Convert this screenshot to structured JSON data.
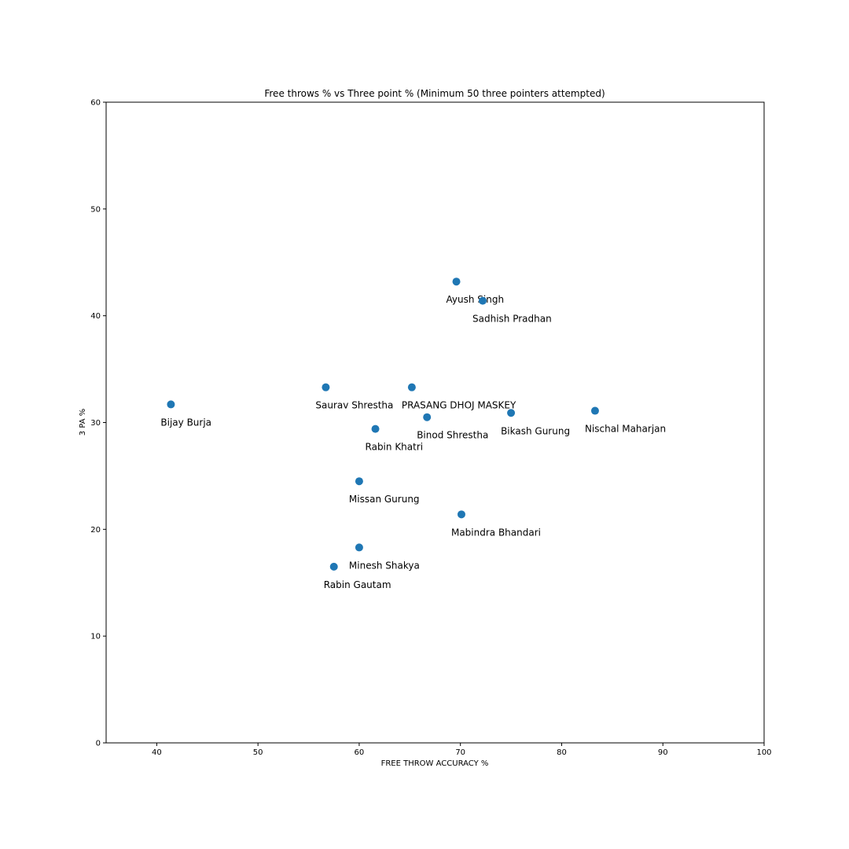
{
  "chart_data": {
    "type": "scatter",
    "title": "Free throws % vs Three point % (Minimum 50 three pointers attempted)",
    "xlabel": "FREE THROW ACCURACY %",
    "ylabel": "3 PA %",
    "xlim": [
      35,
      100
    ],
    "ylim": [
      0,
      60
    ],
    "xticks": [
      40,
      50,
      60,
      70,
      80,
      90,
      100
    ],
    "yticks": [
      0,
      10,
      20,
      30,
      40,
      50,
      60
    ],
    "grid": false,
    "point_color": "#1f77b4",
    "points": [
      {
        "label": "Ayush Singh",
        "x": 69.6,
        "y": 43.2
      },
      {
        "label": "Sadhish Pradhan",
        "x": 72.2,
        "y": 41.4
      },
      {
        "label": "Saurav Shrestha",
        "x": 56.7,
        "y": 33.3
      },
      {
        "label": "PRASANG DHOJ MASKEY",
        "x": 65.2,
        "y": 33.3
      },
      {
        "label": "Bijay Burja",
        "x": 41.4,
        "y": 31.7
      },
      {
        "label": "Binod Shrestha",
        "x": 66.7,
        "y": 30.5
      },
      {
        "label": "Bikash Gurung",
        "x": 75.0,
        "y": 30.9
      },
      {
        "label": "Nischal Maharjan",
        "x": 83.3,
        "y": 31.1
      },
      {
        "label": "Rabin Khatri",
        "x": 61.6,
        "y": 29.4
      },
      {
        "label": "Missan Gurung",
        "x": 60.0,
        "y": 24.5
      },
      {
        "label": "Mabindra Bhandari",
        "x": 70.1,
        "y": 21.4
      },
      {
        "label": "Minesh Shakya",
        "x": 60.0,
        "y": 18.3
      },
      {
        "label": "Rabin Gautam",
        "x": 57.5,
        "y": 16.5
      }
    ]
  }
}
